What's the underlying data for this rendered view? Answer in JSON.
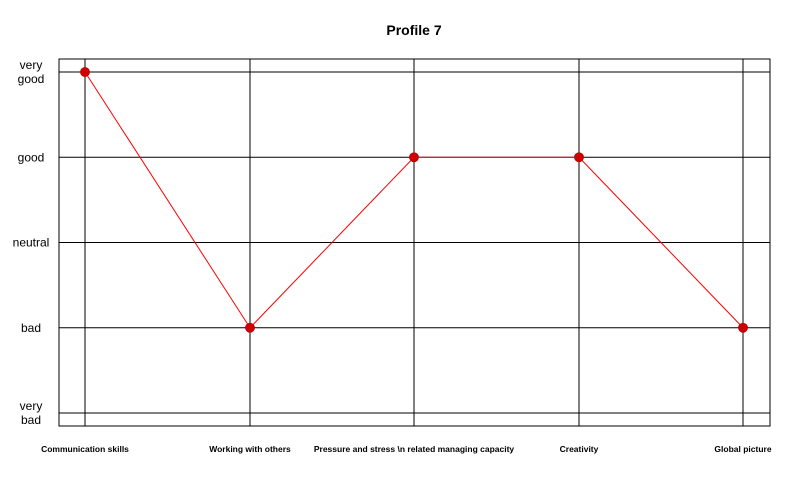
{
  "chart_data": {
    "type": "line",
    "title": "Profile 7",
    "categories": [
      "Communication skills",
      "Working with others",
      "Pressure and stress \\n related managing capacity",
      "Creativity",
      "Global picture"
    ],
    "y_levels": [
      [
        "very",
        "bad"
      ],
      [
        "bad"
      ],
      [
        "neutral"
      ],
      [
        "good"
      ],
      [
        "very",
        "good"
      ]
    ],
    "ylim": [
      1,
      5
    ],
    "series": [
      {
        "values": [
          5,
          2,
          4,
          4,
          2
        ]
      }
    ],
    "grid": true,
    "colors": {
      "line": "#ff0000",
      "marker": "#d40000",
      "grid": "#000000"
    }
  }
}
